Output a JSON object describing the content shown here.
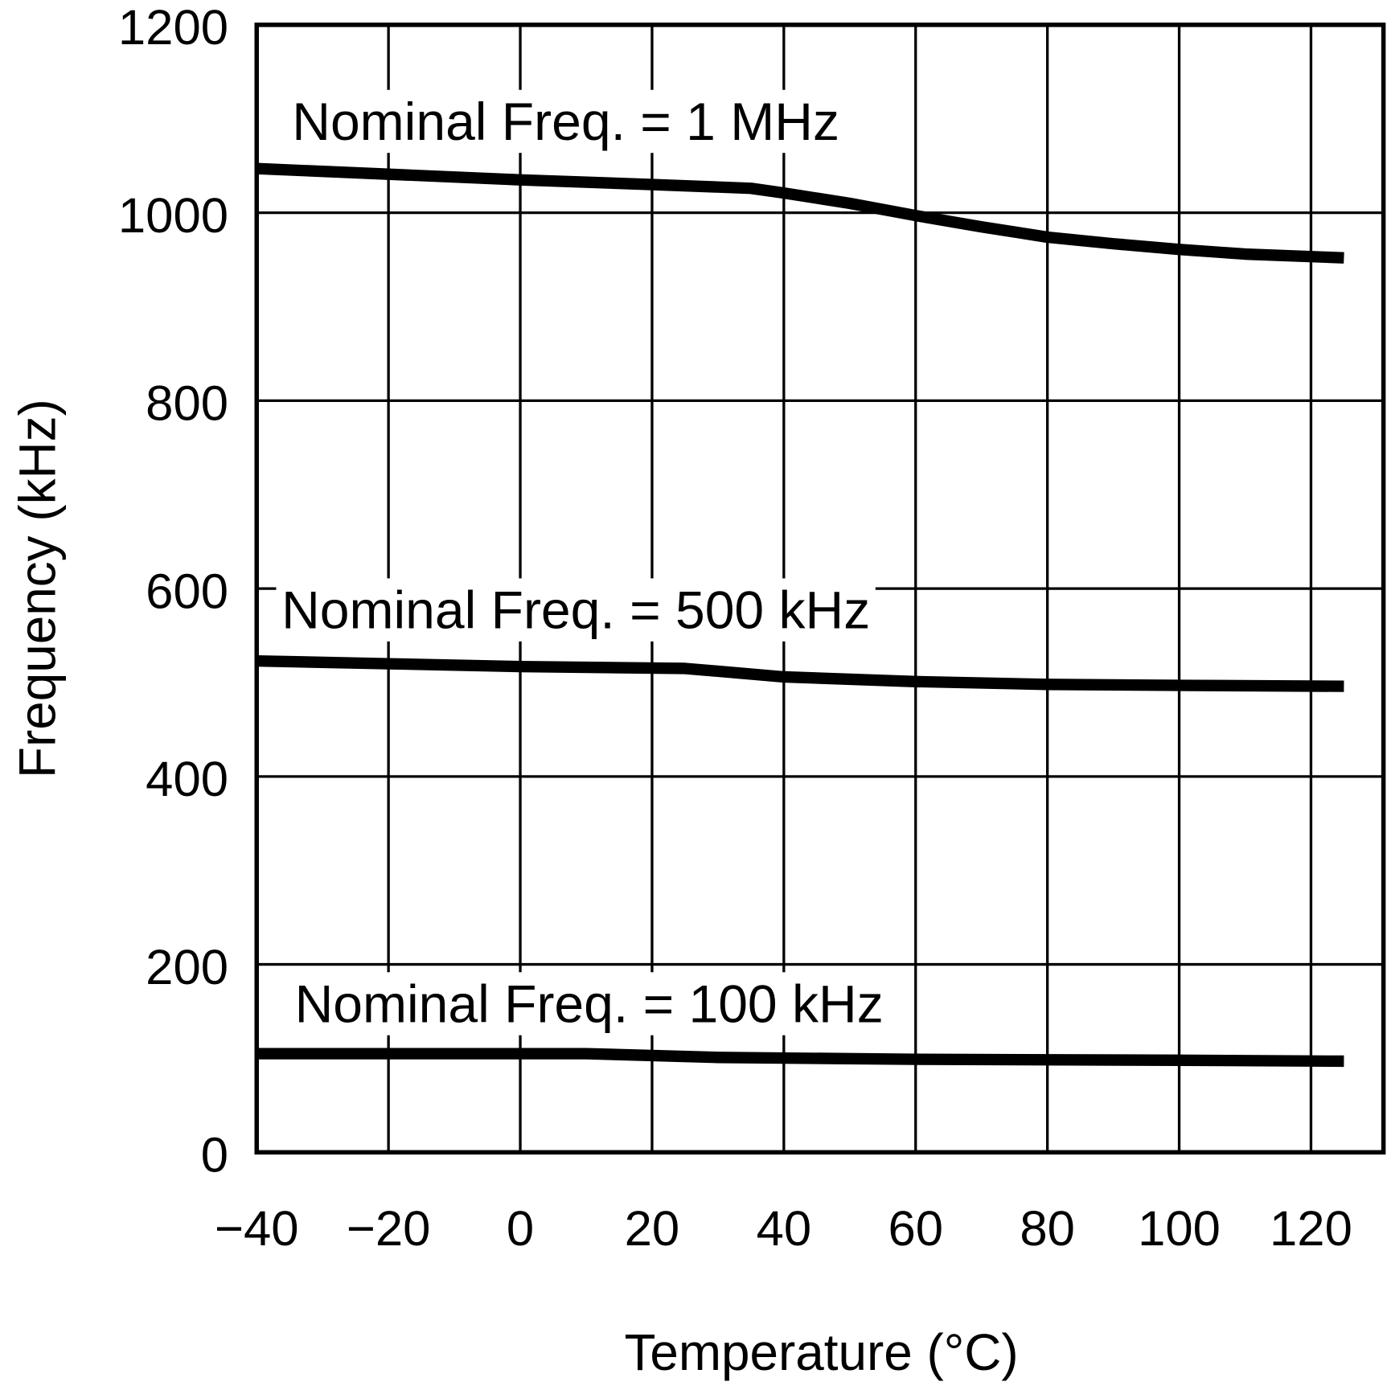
{
  "chart_data": {
    "type": "line",
    "xlabel": "Temperature (°C)",
    "ylabel": "Frequency (kHz)",
    "xlim": [
      -40,
      131
    ],
    "ylim": [
      0,
      1200
    ],
    "xticks": [
      -40,
      -20,
      0,
      20,
      40,
      60,
      80,
      100,
      120
    ],
    "yticks": [
      0,
      200,
      400,
      600,
      800,
      1000,
      1200
    ],
    "grid": true,
    "line_color": "#000000",
    "series": [
      {
        "name": "Nominal Freq. = 1 MHz",
        "x": [
          -40,
          -20,
          0,
          20,
          35,
          40,
          50,
          60,
          70,
          80,
          90,
          100,
          110,
          125
        ],
        "y": [
          1047,
          1041,
          1035,
          1030,
          1026,
          1021,
          1010,
          997,
          985,
          974,
          967,
          961,
          956,
          952
        ]
      },
      {
        "name": "Nominal Freq. = 500 kHz",
        "x": [
          -40,
          -20,
          0,
          25,
          40,
          60,
          80,
          100,
          125
        ],
        "y": [
          523,
          520,
          517,
          515,
          506,
          501,
          498,
          497,
          496
        ]
      },
      {
        "name": "Nominal Freq. = 100 kHz",
        "x": [
          -40,
          10,
          30,
          60,
          100,
          125
        ],
        "y": [
          105,
          105,
          101,
          99,
          98,
          97
        ]
      }
    ]
  }
}
